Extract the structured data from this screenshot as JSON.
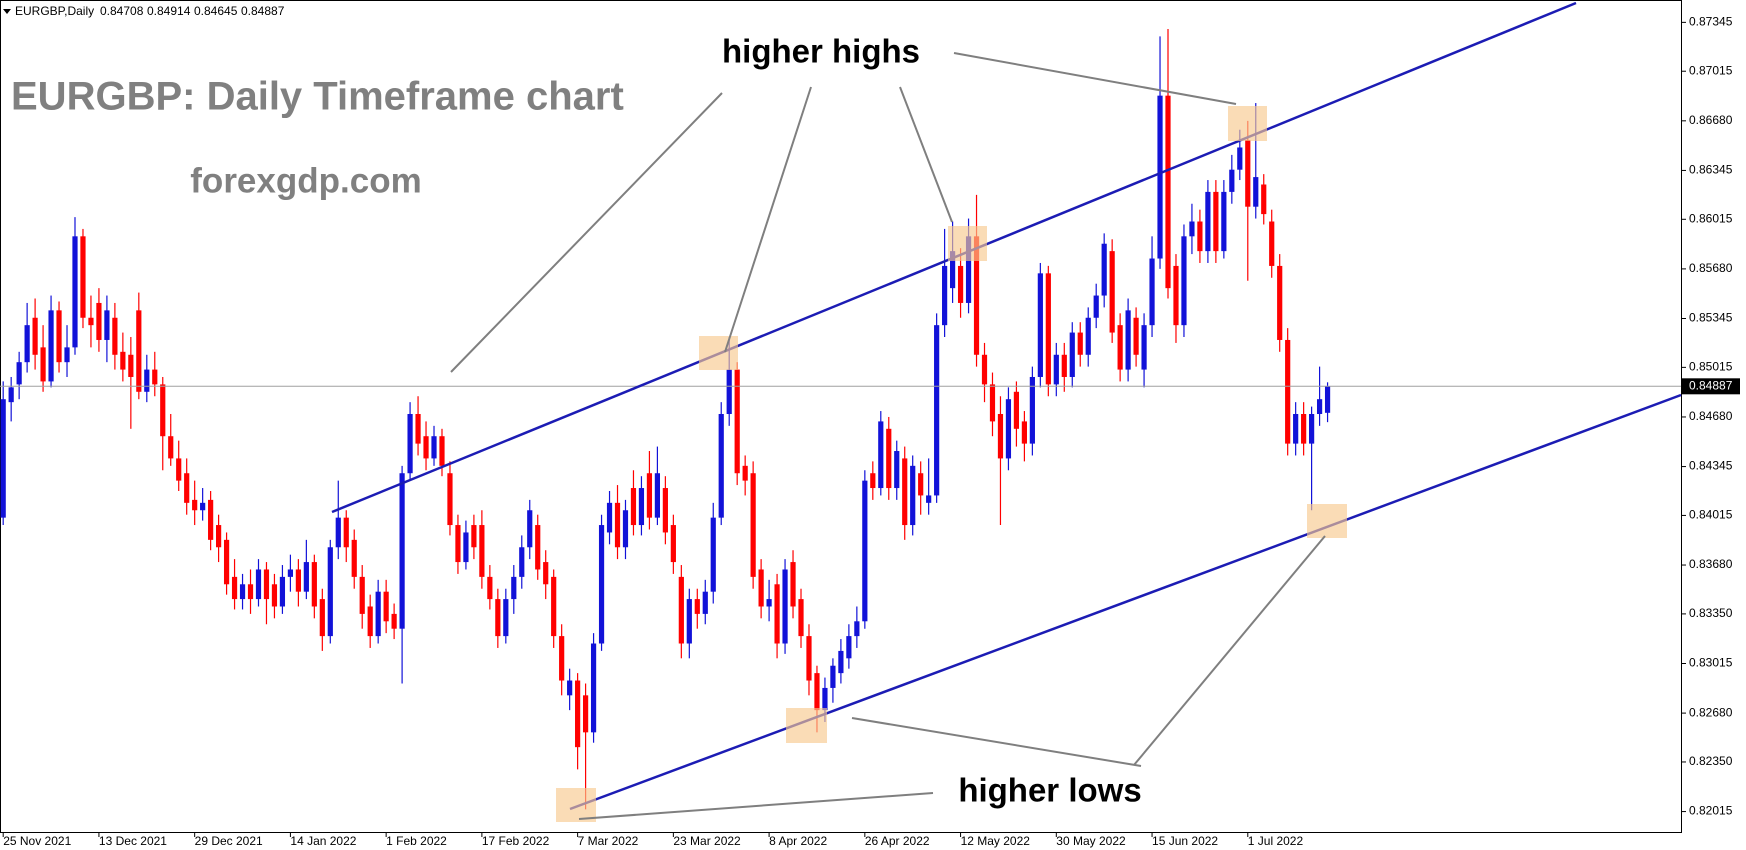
{
  "chart_data": {
    "type": "candlestick",
    "symbol": "EURGBP,Daily",
    "title": "EURGBP: Daily Timeframe chart",
    "subtitle": "forexgdp.com",
    "annotations": [
      "higher highs",
      "higher lows"
    ],
    "up_color": "#1212d8",
    "down_color": "#ff0000",
    "grid": false,
    "ohlc": [
      [
        0.84,
        0.8492,
        0.8395,
        0.848
      ],
      [
        0.8478,
        0.8495,
        0.8465,
        0.8488
      ],
      [
        0.849,
        0.8512,
        0.848,
        0.8505
      ],
      [
        0.8505,
        0.8545,
        0.8498,
        0.853
      ],
      [
        0.8535,
        0.8548,
        0.85,
        0.851
      ],
      [
        0.8515,
        0.853,
        0.8485,
        0.8492
      ],
      [
        0.8492,
        0.855,
        0.8488,
        0.854
      ],
      [
        0.854,
        0.8546,
        0.8498,
        0.8505
      ],
      [
        0.8505,
        0.853,
        0.8495,
        0.8515
      ],
      [
        0.8515,
        0.8603,
        0.851,
        0.859
      ],
      [
        0.859,
        0.8595,
        0.8528,
        0.8535
      ],
      [
        0.8535,
        0.855,
        0.8515,
        0.853
      ],
      [
        0.8545,
        0.8555,
        0.8512,
        0.852
      ],
      [
        0.852,
        0.855,
        0.8505,
        0.854
      ],
      [
        0.8535,
        0.8545,
        0.85,
        0.851
      ],
      [
        0.8512,
        0.8525,
        0.8492,
        0.85
      ],
      [
        0.851,
        0.8522,
        0.846,
        0.8495
      ],
      [
        0.854,
        0.8552,
        0.848,
        0.8485
      ],
      [
        0.8485,
        0.851,
        0.8478,
        0.85
      ],
      [
        0.85,
        0.8512,
        0.8482,
        0.849
      ],
      [
        0.849,
        0.8495,
        0.8432,
        0.8455
      ],
      [
        0.8455,
        0.847,
        0.8435,
        0.844
      ],
      [
        0.844,
        0.8452,
        0.8418,
        0.8425
      ],
      [
        0.843,
        0.844,
        0.8402,
        0.841
      ],
      [
        0.8412,
        0.8425,
        0.8395,
        0.8405
      ],
      [
        0.8405,
        0.842,
        0.8398,
        0.841
      ],
      [
        0.8412,
        0.8418,
        0.8378,
        0.8385
      ],
      [
        0.8395,
        0.8402,
        0.837,
        0.838
      ],
      [
        0.8385,
        0.839,
        0.8348,
        0.8355
      ],
      [
        0.836,
        0.8372,
        0.8338,
        0.8345
      ],
      [
        0.8345,
        0.8362,
        0.8338,
        0.8355
      ],
      [
        0.8355,
        0.8365,
        0.8335,
        0.8345
      ],
      [
        0.8345,
        0.8372,
        0.834,
        0.8365
      ],
      [
        0.8365,
        0.837,
        0.8328,
        0.8345
      ],
      [
        0.8355,
        0.8362,
        0.8332,
        0.834
      ],
      [
        0.834,
        0.8368,
        0.8335,
        0.836
      ],
      [
        0.836,
        0.8375,
        0.835,
        0.8365
      ],
      [
        0.8365,
        0.8372,
        0.834,
        0.835
      ],
      [
        0.835,
        0.8385,
        0.8345,
        0.837
      ],
      [
        0.837,
        0.8375,
        0.8332,
        0.834
      ],
      [
        0.8345,
        0.8352,
        0.831,
        0.832
      ],
      [
        0.832,
        0.8385,
        0.8315,
        0.838
      ],
      [
        0.838,
        0.8425,
        0.8372,
        0.84
      ],
      [
        0.84,
        0.8405,
        0.837,
        0.838
      ],
      [
        0.8385,
        0.8392,
        0.8352,
        0.836
      ],
      [
        0.836,
        0.8368,
        0.8325,
        0.8335
      ],
      [
        0.834,
        0.8348,
        0.8312,
        0.832
      ],
      [
        0.832,
        0.8358,
        0.8315,
        0.835
      ],
      [
        0.835,
        0.8358,
        0.8322,
        0.833
      ],
      [
        0.8335,
        0.8342,
        0.8318,
        0.8325
      ],
      [
        0.8325,
        0.8435,
        0.8288,
        0.843
      ],
      [
        0.843,
        0.8478,
        0.8425,
        0.847
      ],
      [
        0.847,
        0.8482,
        0.8442,
        0.845
      ],
      [
        0.8455,
        0.8465,
        0.8432,
        0.844
      ],
      [
        0.844,
        0.8462,
        0.8435,
        0.8455
      ],
      [
        0.8455,
        0.846,
        0.8428,
        0.8435
      ],
      [
        0.843,
        0.8438,
        0.8388,
        0.8395
      ],
      [
        0.8395,
        0.8402,
        0.8362,
        0.837
      ],
      [
        0.837,
        0.8398,
        0.8365,
        0.839
      ],
      [
        0.8395,
        0.8402,
        0.8372,
        0.838
      ],
      [
        0.8395,
        0.8405,
        0.8352,
        0.836
      ],
      [
        0.836,
        0.8368,
        0.8338,
        0.8345
      ],
      [
        0.8345,
        0.8352,
        0.8312,
        0.832
      ],
      [
        0.832,
        0.8352,
        0.8315,
        0.8345
      ],
      [
        0.8345,
        0.8368,
        0.8335,
        0.836
      ],
      [
        0.836,
        0.8388,
        0.8352,
        0.838
      ],
      [
        0.838,
        0.8412,
        0.8372,
        0.8405
      ],
      [
        0.8395,
        0.8402,
        0.8358,
        0.8365
      ],
      [
        0.837,
        0.8378,
        0.8345,
        0.8355
      ],
      [
        0.836,
        0.8365,
        0.8312,
        0.832
      ],
      [
        0.832,
        0.8328,
        0.828,
        0.829
      ],
      [
        0.828,
        0.8298,
        0.827,
        0.829
      ],
      [
        0.829,
        0.8295,
        0.823,
        0.8245
      ],
      [
        0.828,
        0.8288,
        0.8203,
        0.8255
      ],
      [
        0.8255,
        0.8322,
        0.8248,
        0.8315
      ],
      [
        0.8315,
        0.8402,
        0.831,
        0.8395
      ],
      [
        0.839,
        0.8418,
        0.8382,
        0.841
      ],
      [
        0.841,
        0.8422,
        0.8372,
        0.838
      ],
      [
        0.838,
        0.8412,
        0.8372,
        0.8405
      ],
      [
        0.842,
        0.8432,
        0.8388,
        0.8395
      ],
      [
        0.8395,
        0.8428,
        0.8388,
        0.842
      ],
      [
        0.843,
        0.8445,
        0.8392,
        0.84
      ],
      [
        0.84,
        0.8448,
        0.8395,
        0.843
      ],
      [
        0.842,
        0.8428,
        0.8382,
        0.839
      ],
      [
        0.8395,
        0.8402,
        0.8362,
        0.837
      ],
      [
        0.836,
        0.8368,
        0.8305,
        0.8315
      ],
      [
        0.8315,
        0.8352,
        0.8305,
        0.8345
      ],
      [
        0.8345,
        0.8352,
        0.8325,
        0.8335
      ],
      [
        0.8335,
        0.8358,
        0.8328,
        0.835
      ],
      [
        0.835,
        0.841,
        0.8342,
        0.84
      ],
      [
        0.84,
        0.8478,
        0.8395,
        0.847
      ],
      [
        0.847,
        0.8522,
        0.8462,
        0.85
      ],
      [
        0.85,
        0.8505,
        0.8422,
        0.843
      ],
      [
        0.8435,
        0.8442,
        0.8415,
        0.8425
      ],
      [
        0.843,
        0.8438,
        0.8352,
        0.836
      ],
      [
        0.8365,
        0.8372,
        0.8332,
        0.834
      ],
      [
        0.834,
        0.8358,
        0.833,
        0.8345
      ],
      [
        0.8355,
        0.8362,
        0.8305,
        0.8315
      ],
      [
        0.8315,
        0.8372,
        0.8308,
        0.8365
      ],
      [
        0.837,
        0.8378,
        0.8332,
        0.834
      ],
      [
        0.8345,
        0.8352,
        0.8312,
        0.832
      ],
      [
        0.832,
        0.8328,
        0.828,
        0.829
      ],
      [
        0.8295,
        0.83,
        0.8255,
        0.827
      ],
      [
        0.827,
        0.8292,
        0.8262,
        0.8285
      ],
      [
        0.8285,
        0.8305,
        0.8275,
        0.83
      ],
      [
        0.8295,
        0.8318,
        0.8288,
        0.831
      ],
      [
        0.8305,
        0.8328,
        0.8298,
        0.832
      ],
      [
        0.832,
        0.834,
        0.8312,
        0.833
      ],
      [
        0.833,
        0.8432,
        0.8325,
        0.8425
      ],
      [
        0.843,
        0.8438,
        0.8412,
        0.842
      ],
      [
        0.842,
        0.8472,
        0.8415,
        0.8465
      ],
      [
        0.846,
        0.8468,
        0.8412,
        0.842
      ],
      [
        0.842,
        0.8452,
        0.8412,
        0.8445
      ],
      [
        0.844,
        0.8448,
        0.8385,
        0.8395
      ],
      [
        0.8395,
        0.8442,
        0.8388,
        0.8435
      ],
      [
        0.843,
        0.8438,
        0.8402,
        0.8415
      ],
      [
        0.841,
        0.844,
        0.8402,
        0.8415
      ],
      [
        0.8415,
        0.8538,
        0.841,
        0.853
      ],
      [
        0.853,
        0.8595,
        0.8522,
        0.857
      ],
      [
        0.8555,
        0.86,
        0.8545,
        0.858
      ],
      [
        0.857,
        0.8582,
        0.8535,
        0.8545
      ],
      [
        0.8545,
        0.8602,
        0.8538,
        0.859
      ],
      [
        0.859,
        0.8618,
        0.8502,
        0.851
      ],
      [
        0.851,
        0.8518,
        0.8478,
        0.849
      ],
      [
        0.849,
        0.8498,
        0.8455,
        0.8465
      ],
      [
        0.847,
        0.8482,
        0.8395,
        0.844
      ],
      [
        0.844,
        0.8488,
        0.8432,
        0.848
      ],
      [
        0.8485,
        0.8492,
        0.8448,
        0.846
      ],
      [
        0.8465,
        0.8472,
        0.8438,
        0.845
      ],
      [
        0.845,
        0.8502,
        0.8442,
        0.8495
      ],
      [
        0.8495,
        0.8572,
        0.8488,
        0.8565
      ],
      [
        0.8565,
        0.857,
        0.8482,
        0.849
      ],
      [
        0.849,
        0.8518,
        0.8482,
        0.851
      ],
      [
        0.851,
        0.8518,
        0.8485,
        0.8495
      ],
      [
        0.8495,
        0.8532,
        0.8488,
        0.8525
      ],
      [
        0.8525,
        0.8532,
        0.8502,
        0.851
      ],
      [
        0.851,
        0.8542,
        0.8502,
        0.8535
      ],
      [
        0.8535,
        0.8558,
        0.8528,
        0.855
      ],
      [
        0.855,
        0.8592,
        0.8542,
        0.8585
      ],
      [
        0.858,
        0.8588,
        0.8518,
        0.8525
      ],
      [
        0.853,
        0.8538,
        0.8492,
        0.85
      ],
      [
        0.85,
        0.8548,
        0.8492,
        0.854
      ],
      [
        0.8535,
        0.8542,
        0.8502,
        0.851
      ],
      [
        0.85,
        0.8538,
        0.8488,
        0.853
      ],
      [
        0.853,
        0.859,
        0.8522,
        0.8575
      ],
      [
        0.8575,
        0.8725,
        0.8568,
        0.8685
      ],
      [
        0.8685,
        0.873,
        0.8548,
        0.8555
      ],
      [
        0.857,
        0.8578,
        0.8518,
        0.853
      ],
      [
        0.853,
        0.8598,
        0.8522,
        0.859
      ],
      [
        0.859,
        0.8612,
        0.8578,
        0.86
      ],
      [
        0.86,
        0.8608,
        0.8572,
        0.858
      ],
      [
        0.858,
        0.8628,
        0.8572,
        0.862
      ],
      [
        0.862,
        0.8628,
        0.8572,
        0.858
      ],
      [
        0.858,
        0.8628,
        0.8575,
        0.862
      ],
      [
        0.862,
        0.8645,
        0.8612,
        0.8635
      ],
      [
        0.8635,
        0.8662,
        0.8628,
        0.865
      ],
      [
        0.8655,
        0.8668,
        0.856,
        0.861
      ],
      [
        0.861,
        0.868,
        0.8602,
        0.863
      ],
      [
        0.8625,
        0.8632,
        0.8598,
        0.8605
      ],
      [
        0.86,
        0.8608,
        0.8562,
        0.857
      ],
      [
        0.857,
        0.8578,
        0.8512,
        0.852
      ],
      [
        0.852,
        0.8528,
        0.8442,
        0.845
      ],
      [
        0.845,
        0.8478,
        0.8442,
        0.847
      ],
      [
        0.847,
        0.8478,
        0.8442,
        0.845
      ],
      [
        0.845,
        0.8475,
        0.8405,
        0.847
      ],
      [
        0.847,
        0.8502,
        0.8462,
        0.848
      ],
      [
        0.84708,
        0.84914,
        0.84645,
        0.84887
      ]
    ],
    "xlim": [
      -0.4,
      210.3
    ],
    "xticks": [
      {
        "value": 0,
        "label": "25 Nov 2021"
      },
      {
        "value": 12,
        "label": "13 Dec 2021"
      },
      {
        "value": 24,
        "label": "29 Dec 2021"
      },
      {
        "value": 36,
        "label": "14 Jan 2022"
      },
      {
        "value": 48,
        "label": "1 Feb 2022"
      },
      {
        "value": 60,
        "label": "17 Feb 2022"
      },
      {
        "value": 72,
        "label": "7 Mar 2022"
      },
      {
        "value": 84,
        "label": "23 Mar 2022"
      },
      {
        "value": 96,
        "label": "8 Apr 2022"
      },
      {
        "value": 108,
        "label": "26 Apr 2022"
      },
      {
        "value": 120,
        "label": "12 May 2022"
      },
      {
        "value": 132,
        "label": "30 May 2022"
      },
      {
        "value": 144,
        "label": "15 Jun 2022"
      },
      {
        "value": 156,
        "label": "1 Jul 2022"
      }
    ],
    "ylim": [
      0.81877,
      0.87496
    ],
    "yticks": [
      0.87345,
      0.87015,
      {
        "value": 0.8668,
        "label": "0.86680"
      },
      0.86345,
      0.86015,
      {
        "value": 0.8568,
        "label": "0.85680"
      },
      0.85345,
      0.85015,
      {
        "value": 0.8468,
        "label": "0.84680"
      },
      0.84345,
      0.84015,
      {
        "value": 0.8368,
        "label": "0.83680"
      },
      {
        "value": 0.8335,
        "label": "0.83350"
      },
      0.83015,
      {
        "value": 0.8268,
        "label": "0.82680"
      },
      {
        "value": 0.8235,
        "label": "0.82350"
      },
      0.82015
    ]
  }
}
